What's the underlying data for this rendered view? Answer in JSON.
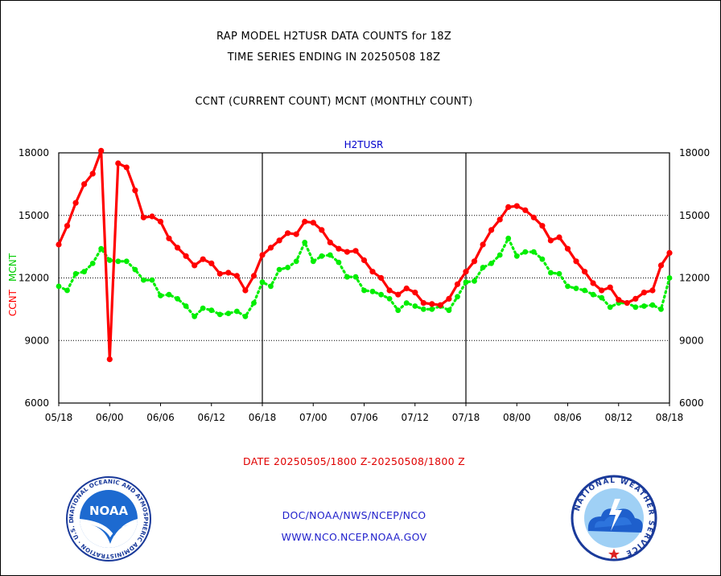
{
  "header": {
    "title_line1": "RAP MODEL H2TUSR DATA COUNTS for 18Z",
    "title_line2": "TIME SERIES ENDING IN 20250508 18Z",
    "title_line3": "CCNT (CURRENT COUNT) MCNT (MONTHLY COUNT)"
  },
  "footer": {
    "date_range": "DATE 20250505/1800 Z-20250508/1800 Z",
    "org": "DOC/NOAA/NWS/NCEP/NCO",
    "url": "WWW.NCO.NCEP.NOAA.GOV",
    "noaa_logo_text": "NOAA",
    "noaa_seal_text": "NATIONAL OCEANIC AND ATMOSPHERIC ADMINISTRATION · U.S. DEPARTMENT OF COMMERCE",
    "nws_seal_text": "NATIONAL WEATHER SERVICE"
  },
  "chart_data": {
    "type": "line",
    "title": "H2TUSR",
    "ylabel_ccnt": "CCNT",
    "ylabel_mcnt": "MCNT",
    "ylim": [
      6000,
      18000
    ],
    "yticks": [
      "6000",
      "9000",
      "12000",
      "15000",
      "18000"
    ],
    "xlim": [
      0,
      72
    ],
    "xticks": [
      "05/18",
      "06/00",
      "06/06",
      "06/12",
      "06/18",
      "07/00",
      "07/06",
      "07/12",
      "07/18",
      "08/00",
      "08/06",
      "08/12",
      "08/18"
    ],
    "major_vlines_hours": [
      24,
      48
    ],
    "grid": true,
    "colors": {
      "ccnt": "#ff0000",
      "mcnt": "#00ee00",
      "title": "#0000cc"
    },
    "series": [
      {
        "name": "CCNT",
        "x": [
          0,
          1,
          2,
          3,
          4,
          5,
          6,
          7,
          8,
          9,
          10,
          11,
          12,
          13,
          14,
          15,
          16,
          17,
          18,
          19,
          20,
          21,
          22,
          23,
          24,
          25,
          26,
          27,
          28,
          29,
          30,
          31,
          32,
          33,
          34,
          35,
          36,
          37,
          38,
          39,
          40,
          41,
          42,
          43,
          44,
          45,
          46,
          47,
          48,
          49,
          50,
          51,
          52,
          53,
          54,
          55,
          56,
          57,
          58,
          59,
          60,
          61,
          62,
          63,
          64,
          65,
          66,
          67,
          68,
          69,
          70,
          71,
          72
        ],
        "values": [
          13600,
          14500,
          15600,
          16500,
          17000,
          18100,
          8100,
          17500,
          17300,
          16200,
          14900,
          14950,
          14700,
          13900,
          13450,
          13050,
          12600,
          12900,
          12700,
          12200,
          12250,
          12100,
          11400,
          12100,
          13100,
          13450,
          13800,
          14150,
          14100,
          14700,
          14650,
          14300,
          13700,
          13400,
          13250,
          13300,
          12850,
          12300,
          12000,
          11400,
          11200,
          11500,
          11300,
          10800,
          10750,
          10700,
          11000,
          11700,
          12300,
          12800,
          13600,
          14300,
          14800,
          15400,
          15450,
          15250,
          14900,
          14500,
          13800,
          13950,
          13400,
          12800,
          12300,
          11750,
          11400,
          11550,
          10950,
          10800,
          11000,
          11300,
          11400,
          12600,
          13200
        ]
      },
      {
        "name": "MCNT",
        "x": [
          0,
          1,
          2,
          3,
          4,
          5,
          6,
          7,
          8,
          9,
          10,
          11,
          12,
          13,
          14,
          15,
          16,
          17,
          18,
          19,
          20,
          21,
          22,
          23,
          24,
          25,
          26,
          27,
          28,
          29,
          30,
          31,
          32,
          33,
          34,
          35,
          36,
          37,
          38,
          39,
          40,
          41,
          42,
          43,
          44,
          45,
          46,
          47,
          48,
          49,
          50,
          51,
          52,
          53,
          54,
          55,
          56,
          57,
          58,
          59,
          60,
          61,
          62,
          63,
          64,
          65,
          66,
          67,
          68,
          69,
          70,
          71,
          72
        ],
        "values": [
          11600,
          11400,
          12200,
          12300,
          12700,
          13400,
          12850,
          12800,
          12800,
          12400,
          11900,
          11900,
          11150,
          11200,
          11000,
          10650,
          10150,
          10550,
          10450,
          10250,
          10300,
          10400,
          10150,
          10800,
          11800,
          11600,
          12400,
          12500,
          12800,
          13700,
          12800,
          13050,
          13100,
          12750,
          12050,
          12050,
          11400,
          11350,
          11200,
          11000,
          10450,
          10800,
          10650,
          10500,
          10500,
          10650,
          10450,
          11100,
          11800,
          11850,
          12500,
          12700,
          13100,
          13900,
          13050,
          13250,
          13250,
          12900,
          12250,
          12200,
          11600,
          11500,
          11400,
          11200,
          11050,
          10600,
          10800,
          10800,
          10600,
          10650,
          10700,
          10500,
          12000
        ]
      }
    ]
  }
}
